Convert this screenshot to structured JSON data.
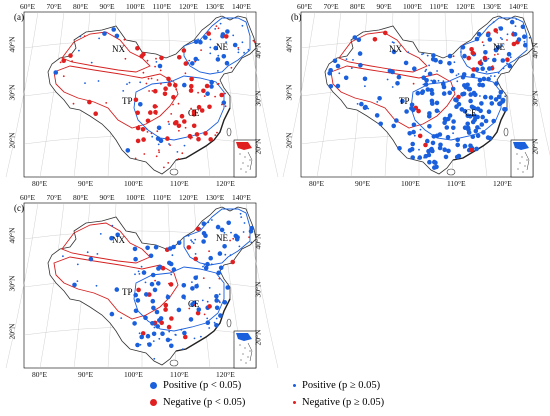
{
  "colors": {
    "positive": "#1a5fdc",
    "negative": "#e02020",
    "region_line_a": "#d42020",
    "region_line_b": "#1a5fdc"
  },
  "lon_labels_top": [
    "60°E",
    "70°E",
    "80°E",
    "90°E",
    "100°E",
    "110°E",
    "120°E",
    "130°E",
    "140°E"
  ],
  "lon_labels_bottom": [
    "80°E",
    "90°E",
    "100°E",
    "110°E",
    "120°E"
  ],
  "lat_labels_left": [
    "40°N",
    "30°N",
    "20°N"
  ],
  "lat_labels_right": [
    "40°N",
    "30°N",
    "20°N"
  ],
  "panels": [
    {
      "label": "(a)",
      "regions": [
        "NX",
        "NE",
        "TP",
        "CE"
      ],
      "dominant": "negative-south"
    },
    {
      "label": "(b)",
      "regions": [
        "NX",
        "NE",
        "TP",
        "CE"
      ],
      "dominant": "positive"
    },
    {
      "label": "(c)",
      "regions": [
        "NX",
        "NE",
        "TP",
        "CE"
      ],
      "dominant": "positive"
    }
  ],
  "legend": {
    "items": [
      {
        "sign": "positive",
        "sig": true,
        "label": "Positive (p < 0.05)"
      },
      {
        "sign": "positive",
        "sig": false,
        "label": "Positive (p ≥ 0.05)"
      },
      {
        "sign": "negative",
        "sig": true,
        "label": "Negative (p < 0.05)"
      },
      {
        "sign": "negative",
        "sig": false,
        "label": "Negative (p ≥ 0.05)"
      }
    ]
  }
}
